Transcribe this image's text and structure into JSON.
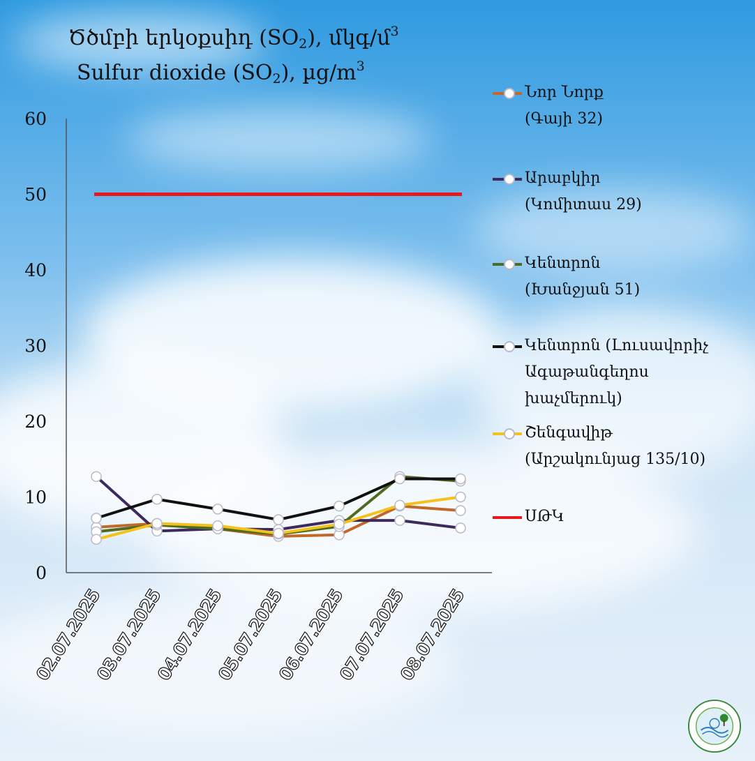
{
  "title_line1": "Ծծմբի երկօքսիդ (SO",
  "title_line1_sub": "2",
  "title_line1_end": "), մկգ/մ",
  "title_line1_sup": "3",
  "title_line2": "Sulfur dioxide (SO",
  "title_line2_sub": "2",
  "title_line2_end": "), µg/m",
  "title_line2_sup": "3",
  "chart_data": {
    "type": "line",
    "categories": [
      "02.07.2025",
      "03.07.2025",
      "04.07.2025",
      "05.07.2025",
      "06.07.2025",
      "07.07.2025",
      "08.07.2025"
    ],
    "ylim": [
      0,
      60
    ],
    "yticks": [
      0,
      10,
      20,
      30,
      40,
      50,
      60
    ],
    "grid": false,
    "legend_position": "right",
    "series": [
      {
        "name": "Նոր Նորք (Գայի 32)",
        "line1": "Նոր Նորք",
        "line2": "(Գայի 32)",
        "color": "#c0692a",
        "values": [
          6,
          6.5,
          5.8,
          4.8,
          5,
          8.8,
          8.2
        ]
      },
      {
        "name": "Արաբկիր (Կոմիտաս 29)",
        "line1": "Արաբկիր",
        "line2": "(Կոմիտաս 29)",
        "color": "#3f2a5e",
        "values": [
          12.7,
          5.5,
          5.8,
          5.7,
          6.9,
          6.9,
          5.9
        ]
      },
      {
        "name": "Կենտրոն (Խանջյան 51)",
        "line1": "Կենտրոն",
        "line2": "(Խանջյան 51)",
        "color": "#4f6b1f",
        "values": [
          5.4,
          6.3,
          5.8,
          5.1,
          6.1,
          12.7,
          12.1
        ]
      },
      {
        "name": "Կենտրոն (Լուսավորիչ Ագաթանգեղոս խաչմերուկ)",
        "line1": "Կենտրոն (Լուսավորիչ",
        "line2": "Ագաթանգեղոս",
        "line3": "խաչմերուկ)",
        "color": "#111111",
        "values": [
          7.2,
          9.7,
          8.4,
          7,
          8.8,
          12.4,
          12.4
        ]
      },
      {
        "name": "Շենգավիթ (Արշակունյաց 135/10)",
        "line1": "Շենգավիթ",
        "line2": "(Արշակունյաց 135/10)",
        "color": "#f4c21a",
        "values": [
          4.4,
          6.5,
          6.2,
          5.2,
          6.4,
          8.9,
          10
        ]
      }
    ],
    "threshold": {
      "name": "ՍԹԿ",
      "value": 50,
      "color": "#e8191e"
    }
  }
}
